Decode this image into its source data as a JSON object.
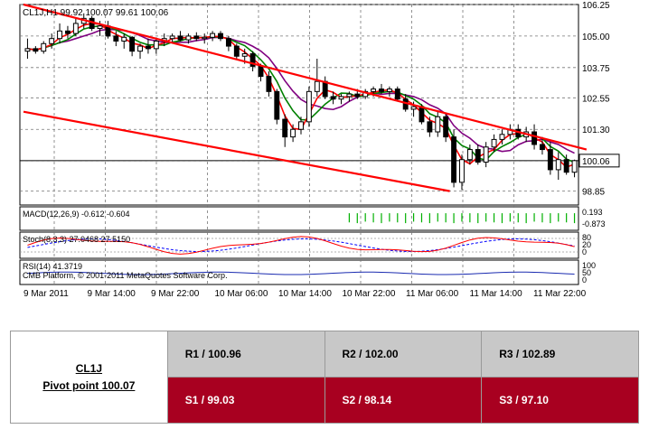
{
  "colors": {
    "bull": "#ffffff",
    "bear": "#000000",
    "channel": "#ff0000",
    "ma_fast": "#ff0000",
    "ma_mid": "#008000",
    "ma_slow": "#800080",
    "macd_hist": "#00b000",
    "macd_signal": "#ff0000",
    "stoch_main": "#ff0000",
    "stoch_signal": "#0000ff",
    "rsi": "#1a2bb0",
    "table_resistance_bg": "#c8c8c8",
    "table_support_bg": "#a80020"
  },
  "chart_data": {
    "type": "candlestick",
    "title": "CL1J,H1",
    "ohlc_label": "99.92 100.07 99.61 100.06",
    "ylim": [
      98.3,
      106.25
    ],
    "grid": true,
    "y_ticks": [
      "106.25",
      "105.00",
      "103.75",
      "102.55",
      "101.30",
      "100.06",
      "98.85"
    ],
    "current_price": 100.06,
    "current_price_label": "100.06",
    "x_ticks": [
      "9 Mar 2011",
      "9 Mar 14:00",
      "9 Mar 22:00",
      "10 Mar 06:00",
      "10 Mar 14:00",
      "10 Mar 22:00",
      "11 Mar 06:00",
      "11 Mar 14:00",
      "11 Mar 22:00"
    ],
    "candles": [
      [
        104.4,
        104.9,
        104.1,
        104.5
      ],
      [
        104.5,
        104.6,
        104.3,
        104.4
      ],
      [
        104.4,
        104.8,
        104.3,
        104.7
      ],
      [
        104.7,
        105.1,
        104.5,
        104.9
      ],
      [
        104.9,
        105.5,
        104.7,
        105.2
      ],
      [
        105.2,
        105.4,
        104.9,
        105.1
      ],
      [
        105.1,
        105.7,
        105.0,
        105.5
      ],
      [
        105.5,
        105.9,
        105.3,
        105.7
      ],
      [
        105.7,
        105.8,
        105.2,
        105.3
      ],
      [
        105.3,
        105.6,
        105.0,
        105.4
      ],
      [
        105.4,
        105.6,
        104.9,
        105.0
      ],
      [
        105.0,
        105.2,
        104.6,
        104.8
      ],
      [
        104.8,
        105.1,
        104.5,
        104.95
      ],
      [
        104.95,
        105.0,
        104.2,
        104.4
      ],
      [
        104.4,
        104.7,
        104.1,
        104.6
      ],
      [
        104.6,
        104.9,
        104.3,
        104.5
      ],
      [
        104.5,
        104.9,
        104.3,
        104.8
      ],
      [
        104.8,
        105.1,
        104.6,
        104.9
      ],
      [
        104.9,
        105.1,
        104.7,
        105.0
      ],
      [
        105.0,
        105.2,
        104.8,
        104.85
      ],
      [
        104.85,
        105.1,
        104.7,
        105.0
      ],
      [
        105.0,
        105.15,
        104.8,
        104.9
      ],
      [
        104.9,
        105.1,
        104.7,
        104.95
      ],
      [
        104.95,
        105.2,
        104.8,
        105.1
      ],
      [
        105.1,
        105.2,
        104.8,
        104.9
      ],
      [
        104.9,
        105.0,
        104.4,
        104.6
      ],
      [
        104.6,
        104.7,
        104.1,
        104.2
      ],
      [
        104.2,
        104.5,
        103.9,
        104.3
      ],
      [
        104.3,
        104.4,
        103.6,
        103.8
      ],
      [
        103.8,
        103.9,
        103.2,
        103.4
      ],
      [
        103.4,
        103.6,
        102.6,
        102.8
      ],
      [
        102.8,
        102.9,
        101.5,
        101.7
      ],
      [
        101.7,
        101.9,
        100.6,
        101.0
      ],
      [
        101.0,
        101.5,
        100.8,
        101.3
      ],
      [
        101.3,
        101.8,
        101.1,
        101.6
      ],
      [
        101.6,
        103.0,
        101.4,
        102.8
      ],
      [
        102.8,
        104.1,
        102.6,
        103.2
      ],
      [
        103.2,
        103.4,
        102.5,
        102.6
      ],
      [
        102.6,
        102.8,
        102.3,
        102.5
      ],
      [
        102.5,
        102.7,
        102.3,
        102.6
      ],
      [
        102.6,
        102.8,
        102.4,
        102.7
      ],
      [
        102.7,
        102.9,
        102.5,
        102.6
      ],
      [
        102.6,
        102.9,
        102.5,
        102.8
      ],
      [
        102.8,
        103.0,
        102.6,
        102.9
      ],
      [
        102.9,
        103.1,
        102.7,
        102.8
      ],
      [
        102.8,
        103.0,
        102.6,
        102.9
      ],
      [
        102.9,
        103.0,
        102.4,
        102.5
      ],
      [
        102.5,
        102.7,
        102.0,
        102.1
      ],
      [
        102.1,
        102.4,
        101.8,
        102.2
      ],
      [
        102.2,
        102.3,
        101.5,
        101.6
      ],
      [
        101.6,
        101.8,
        101.0,
        101.2
      ],
      [
        101.2,
        102.0,
        101.0,
        101.8
      ],
      [
        101.8,
        101.9,
        100.8,
        101.0
      ],
      [
        101.0,
        101.3,
        99.0,
        99.2
      ],
      [
        99.2,
        100.3,
        98.9,
        100.1
      ],
      [
        100.1,
        100.7,
        99.9,
        100.5
      ],
      [
        100.5,
        100.7,
        99.9,
        100.0
      ],
      [
        100.0,
        100.8,
        99.8,
        100.6
      ],
      [
        100.6,
        101.1,
        100.4,
        100.9
      ],
      [
        100.9,
        101.3,
        100.7,
        101.1
      ],
      [
        101.1,
        101.5,
        100.9,
        101.3
      ],
      [
        101.3,
        101.5,
        100.9,
        101.0
      ],
      [
        101.0,
        101.4,
        100.8,
        101.2
      ],
      [
        101.2,
        101.5,
        100.5,
        100.7
      ],
      [
        100.7,
        101.0,
        100.3,
        100.5
      ],
      [
        100.5,
        100.8,
        99.5,
        99.7
      ],
      [
        99.7,
        100.4,
        99.3,
        100.1
      ],
      [
        100.1,
        100.3,
        99.5,
        99.6
      ],
      [
        99.6,
        100.1,
        99.4,
        100.06
      ]
    ],
    "channel_upper": [
      [
        0,
        106.25
      ],
      [
        69,
        100.5
      ]
    ],
    "channel_lower": [
      [
        0,
        102.0
      ],
      [
        52,
        98.85
      ]
    ],
    "indicators": [
      {
        "name": "MACD",
        "label": "MACD(12,26,9) -0.612 -0.604",
        "scale_labels": [
          "0.193",
          "-0.873"
        ],
        "ylim": [
          -1.0,
          0.3
        ],
        "zero": 0
      },
      {
        "name": "Stoch",
        "label": "Stoch(8,3,3) 27.0468 27.5150",
        "scale_labels": [
          "80",
          "20",
          "0"
        ],
        "ylim": [
          0,
          100
        ]
      },
      {
        "name": "RSI",
        "label": "RSI(14) 41.3719",
        "scale_labels": [
          "100",
          "50",
          "0"
        ],
        "ylim": [
          0,
          100
        ]
      }
    ],
    "platform_text": "CMB Platform, © 2001-2011 MetaQuotes Software Corp."
  },
  "pivot_table": {
    "symbol": "CL1J",
    "pivot": "Pivot point 100.07",
    "resistances": [
      "R1 / 100.96",
      "R2 / 102.00",
      "R3 / 102.89"
    ],
    "supports": [
      "S1 / 99.03",
      "S2 / 98.14",
      "S3 / 97.10"
    ]
  }
}
